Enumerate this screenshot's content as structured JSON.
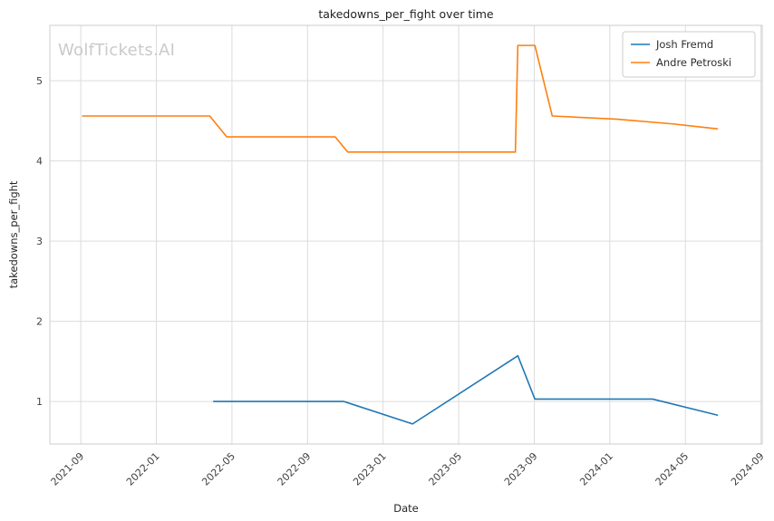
{
  "watermark": "WolfTickets.AI",
  "chart_data": {
    "type": "line",
    "title": "takedowns_per_fight over time",
    "xlabel": "Date",
    "ylabel": "takedowns_per_fight",
    "grid": true,
    "legend_position": "upper right",
    "x_ticks": [
      "2021-09",
      "2022-01",
      "2022-05",
      "2022-09",
      "2023-01",
      "2023-05",
      "2023-09",
      "2024-01",
      "2024-05",
      "2024-09"
    ],
    "y_ticks": [
      1,
      2,
      3,
      4,
      5
    ],
    "xlim": [
      "2021-07-12",
      "2024-09-03"
    ],
    "ylim": [
      0.47,
      5.69
    ],
    "colors": {
      "grid": "#dcdcdc",
      "spine": "#cccccc",
      "tick_text": "#404040",
      "legend_text": "#2e2e2e"
    },
    "series": [
      {
        "name": "Josh Fremd",
        "color": "#1f77b4",
        "x": [
          "2022-04-02",
          "2022-10-29",
          "2023-02-18",
          "2023-08-05",
          "2023-09-02",
          "2024-03-09",
          "2024-06-22"
        ],
        "y": [
          1.0,
          1.0,
          0.72,
          1.57,
          1.03,
          1.03,
          0.83
        ]
      },
      {
        "name": "Andre Petroski",
        "color": "#ff7f0e",
        "x": [
          "2021-09-04",
          "2022-03-26",
          "2022-04-23",
          "2022-10-15",
          "2022-11-05",
          "2023-08-01",
          "2023-08-05",
          "2023-09-02",
          "2023-09-30",
          "2024-01-13",
          "2024-04-13",
          "2024-06-22"
        ],
        "y": [
          4.56,
          4.56,
          4.3,
          4.3,
          4.11,
          4.11,
          5.44,
          5.44,
          4.56,
          4.52,
          4.46,
          4.4
        ]
      }
    ]
  }
}
